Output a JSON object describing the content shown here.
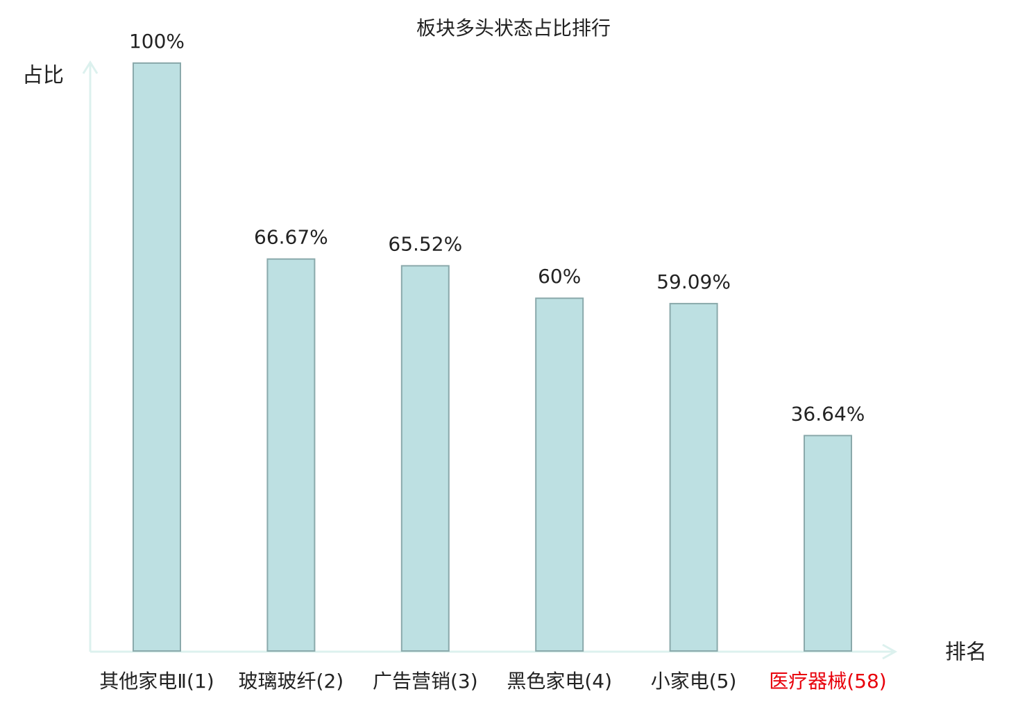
{
  "chart_data": {
    "type": "bar",
    "title": "板块多头状态占比排行",
    "y_label": "占比",
    "x_label": "排名",
    "categories": [
      "其他家电Ⅱ(1)",
      "玻璃玻纤(2)",
      "广告营销(3)",
      "黑色家电(4)",
      "小家电(5)",
      "医疗器械(58)"
    ],
    "values": [
      100,
      66.67,
      65.52,
      60,
      59.09,
      36.64
    ],
    "value_labels": [
      "100%",
      "66.67%",
      "65.52%",
      "60%",
      "59.09%",
      "36.64%"
    ],
    "color": "#bde0e2",
    "edge_color": "#8aa9ab",
    "axis_color": "#dcf1ee",
    "label_colors": [
      "#222222",
      "#222222",
      "#222222",
      "#222222",
      "#222222",
      "#e8000b"
    ],
    "ylim": [
      0,
      100
    ]
  }
}
